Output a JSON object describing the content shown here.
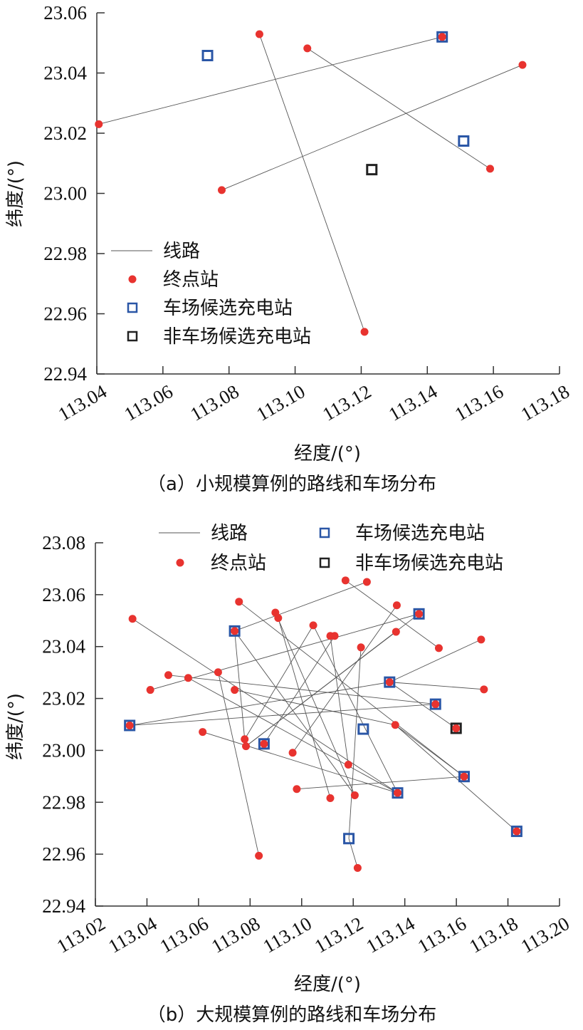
{
  "colors": {
    "terminal": "#e8332f",
    "depot": "#2a56a6",
    "non_depot": "#222222",
    "route": "#555555",
    "axis": "#333333"
  },
  "chart_data": [
    {
      "type": "scatter",
      "caption": "（a）小规模算例的路线和车场分布",
      "xlabel": "经度/(°)",
      "ylabel": "纬度/(°)",
      "xlim": [
        113.04,
        113.18
      ],
      "ylim": [
        22.94,
        23.06
      ],
      "xticks": [
        "113.04",
        "113.06",
        "113.08",
        "113.10",
        "113.12",
        "113.14",
        "113.16",
        "113.18"
      ],
      "yticks": [
        "22.94",
        "22.96",
        "22.98",
        "23.00",
        "23.02",
        "23.04",
        "23.06"
      ],
      "legend": {
        "placement": "left",
        "entries": [
          "线路",
          "终点站",
          "车场候选充电站",
          "非车场候选充电站"
        ]
      },
      "routes": [
        [
          [
            113.0406,
            23.023
          ],
          [
            113.1445,
            23.052
          ]
        ],
        [
          [
            113.0892,
            23.0529
          ],
          [
            113.121,
            22.954
          ]
        ],
        [
          [
            113.1037,
            23.0482
          ],
          [
            113.159,
            23.0082
          ]
        ],
        [
          [
            113.0778,
            23.0011
          ],
          [
            113.1688,
            23.0427
          ]
        ]
      ],
      "terminals": [
        [
          113.0406,
          23.023
        ],
        [
          113.0892,
          23.0529
        ],
        [
          113.121,
          22.954
        ],
        [
          113.1037,
          23.0482
        ],
        [
          113.159,
          23.0082
        ],
        [
          113.0778,
          23.0011
        ],
        [
          113.1688,
          23.0427
        ],
        [
          113.1445,
          23.052
        ]
      ],
      "depot_stations": [
        [
          113.0735,
          23.0458
        ],
        [
          113.151,
          23.0174
        ],
        [
          113.1445,
          23.052
        ]
      ],
      "non_depot_stations": [
        [
          113.1232,
          23.0079
        ]
      ]
    },
    {
      "type": "scatter",
      "caption": "（b）大规模算例的路线和车场分布",
      "xlabel": "经度/(°)",
      "ylabel": "纬度/(°)",
      "xlim": [
        113.02,
        113.2
      ],
      "ylim": [
        22.94,
        23.08
      ],
      "xticks": [
        "113.02",
        "113.04",
        "113.06",
        "113.08",
        "113.10",
        "113.12",
        "113.14",
        "113.16",
        "113.18",
        "113.20"
      ],
      "yticks": [
        "22.94",
        "22.96",
        "22.98",
        "23.00",
        "23.02",
        "23.04",
        "23.06",
        "23.08"
      ],
      "legend": {
        "placement": "top",
        "entries": [
          "线路",
          "终点站",
          "车场候选充电站",
          "非车场候选充电站"
        ]
      },
      "routes": [
        [
          [
            113.0344,
            23.0507
          ],
          [
            113.1372,
            22.9836
          ]
        ],
        [
          [
            113.0757,
            23.0573
          ],
          [
            113.163,
            22.9899
          ]
        ],
        [
          [
            113.074,
            23.046
          ],
          [
            113.1253,
            23.0649
          ]
        ],
        [
          [
            113.117,
            23.0655
          ],
          [
            113.1532,
            23.0394
          ]
        ],
        [
          [
            113.0413,
            23.0233
          ],
          [
            113.1455,
            23.0526
          ]
        ],
        [
          [
            113.1455,
            23.0526
          ],
          [
            113.0784,
            23.0016
          ]
        ],
        [
          [
            113.1696,
            23.0427
          ],
          [
            113.1341,
            23.0263
          ]
        ],
        [
          [
            113.1341,
            23.0263
          ],
          [
            113.1707,
            23.0235
          ]
        ],
        [
          [
            113.1341,
            23.0263
          ],
          [
            113.1599,
            23.0085
          ]
        ],
        [
          [
            113.0333,
            23.0096
          ],
          [
            113.1341,
            23.0263
          ]
        ],
        [
          [
            113.0333,
            23.0096
          ],
          [
            113.1519,
            23.0178
          ]
        ],
        [
          [
            113.0483,
            23.029
          ],
          [
            113.1519,
            23.0178
          ]
        ],
        [
          [
            113.056,
            23.0279
          ],
          [
            113.1372,
            22.9836
          ]
        ],
        [
          [
            113.0676,
            23.0301
          ],
          [
            113.0834,
            22.9594
          ]
        ],
        [
          [
            113.074,
            23.046
          ],
          [
            113.0779,
            23.0043
          ]
        ],
        [
          [
            113.074,
            23.046
          ],
          [
            113.1206,
            22.9827
          ]
        ],
        [
          [
            113.1045,
            23.0482
          ],
          [
            113.0779,
            23.0043
          ]
        ],
        [
          [
            113.1045,
            23.0482
          ],
          [
            113.1372,
            22.9836
          ]
        ],
        [
          [
            113.0898,
            23.0531
          ],
          [
            113.1206,
            22.9827
          ]
        ],
        [
          [
            113.0909,
            23.051
          ],
          [
            113.1111,
            22.9816
          ]
        ],
        [
          [
            113.1369,
            23.0559
          ],
          [
            113.0965,
            22.9991
          ]
        ],
        [
          [
            113.1366,
            23.0457
          ],
          [
            113.0784,
            23.0016
          ]
        ],
        [
          [
            113.123,
            23.0397
          ],
          [
            113.1183,
            22.966
          ]
        ],
        [
          [
            113.1183,
            22.966
          ],
          [
            113.1217,
            22.9547
          ]
        ],
        [
          [
            113.0616,
            23.0071
          ],
          [
            113.1372,
            22.9836
          ]
        ],
        [
          [
            113.0981,
            22.9851
          ],
          [
            113.163,
            22.9899
          ]
        ],
        [
          [
            113.1363,
            23.0098
          ],
          [
            113.1834,
            22.9688
          ]
        ],
        [
          [
            113.1363,
            23.0098
          ],
          [
            113.163,
            22.9899
          ]
        ],
        [
          [
            113.1128,
            23.0441
          ],
          [
            113.0854,
            23.0025
          ]
        ],
        [
          [
            113.1111,
            23.0441
          ],
          [
            113.1181,
            22.9945
          ]
        ],
        [
          [
            113.074,
            23.0233
          ],
          [
            113.1363,
            23.0098
          ]
        ]
      ],
      "terminals": [
        [
          113.117,
          23.0655
        ],
        [
          113.1253,
          23.0649
        ],
        [
          113.1369,
          23.0559
        ],
        [
          113.1532,
          23.0394
        ],
        [
          113.1696,
          23.0427
        ],
        [
          113.0344,
          23.0507
        ],
        [
          113.0757,
          23.0573
        ],
        [
          113.0898,
          23.0531
        ],
        [
          113.0909,
          23.051
        ],
        [
          113.1045,
          23.0482
        ],
        [
          113.1111,
          23.0441
        ],
        [
          113.1128,
          23.0441
        ],
        [
          113.123,
          23.0397
        ],
        [
          113.1366,
          23.0457
        ],
        [
          113.0483,
          23.029
        ],
        [
          113.056,
          23.0279
        ],
        [
          113.0676,
          23.0301
        ],
        [
          113.0413,
          23.0233
        ],
        [
          113.074,
          23.0233
        ],
        [
          113.1707,
          23.0235
        ],
        [
          113.1363,
          23.0098
        ],
        [
          113.0616,
          23.0071
        ],
        [
          113.0779,
          23.0043
        ],
        [
          113.0784,
          23.0016
        ],
        [
          113.0965,
          22.9991
        ],
        [
          113.1181,
          22.9945
        ],
        [
          113.0981,
          22.9851
        ],
        [
          113.1111,
          22.9816
        ],
        [
          113.1206,
          22.9827
        ],
        [
          113.0834,
          22.9594
        ],
        [
          113.1217,
          22.9547
        ],
        [
          113.074,
          23.046
        ],
        [
          113.1455,
          23.0526
        ],
        [
          113.1341,
          23.0263
        ],
        [
          113.1519,
          23.0178
        ],
        [
          113.0333,
          23.0096
        ],
        [
          113.0854,
          23.0025
        ],
        [
          113.1372,
          22.9836
        ],
        [
          113.163,
          22.9899
        ],
        [
          113.1834,
          22.9688
        ],
        [
          113.1599,
          23.0085
        ]
      ],
      "depot_stations": [
        [
          113.074,
          23.046
        ],
        [
          113.1455,
          23.0526
        ],
        [
          113.1341,
          23.0263
        ],
        [
          113.1519,
          23.0178
        ],
        [
          113.0333,
          23.0096
        ],
        [
          113.0854,
          23.0025
        ],
        [
          113.1372,
          22.9836
        ],
        [
          113.163,
          22.9899
        ],
        [
          113.1834,
          22.9688
        ],
        [
          113.1239,
          23.0082
        ],
        [
          113.1183,
          22.966
        ]
      ],
      "non_depot_stations": [
        [
          113.1599,
          23.0085
        ]
      ]
    }
  ]
}
